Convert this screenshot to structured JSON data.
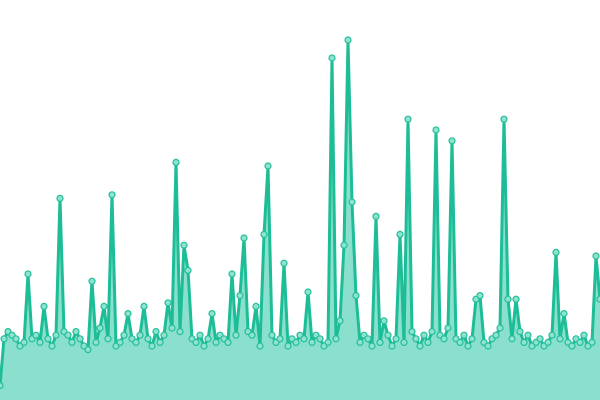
{
  "chart_data": {
    "type": "area",
    "title": "",
    "xlabel": "",
    "ylabel": "",
    "ylim": [
      0,
      100
    ],
    "grid": false,
    "axes_visible": false,
    "markers": true,
    "colors": {
      "line": "#1dbd97",
      "area": "#8ae0cc",
      "marker_fill": "#8fe2cf",
      "marker_stroke": "#22bf99"
    },
    "series": [
      {
        "values": [
          4,
          17,
          19,
          18,
          17,
          15,
          16,
          35,
          17,
          18,
          16,
          26,
          17,
          15,
          18,
          56,
          19,
          18,
          16,
          19,
          17,
          15,
          14,
          33,
          16,
          20,
          26,
          17,
          57,
          15,
          16,
          18,
          24,
          17,
          16,
          18,
          26,
          17,
          15,
          19,
          16,
          18,
          27,
          20,
          66,
          19,
          43,
          36,
          17,
          16,
          18,
          15,
          17,
          24,
          16,
          18,
          17,
          16,
          35,
          18,
          29,
          45,
          19,
          18,
          26,
          15,
          46,
          65,
          18,
          16,
          17,
          38,
          15,
          17,
          16,
          18,
          17,
          30,
          16,
          18,
          17,
          15,
          16,
          95,
          17,
          22,
          43,
          100,
          55,
          29,
          16,
          18,
          17,
          15,
          51,
          16,
          22,
          18,
          15,
          17,
          46,
          16,
          78,
          19,
          17,
          15,
          18,
          16,
          19,
          75,
          18,
          17,
          20,
          72,
          17,
          16,
          18,
          15,
          17,
          28,
          29,
          16,
          15,
          17,
          18,
          20,
          78,
          28,
          17,
          28,
          19,
          16,
          18,
          15,
          16,
          17,
          15,
          16,
          18,
          41,
          17,
          24,
          16,
          15,
          17,
          16,
          18,
          15,
          16,
          40,
          28
        ]
      }
    ]
  }
}
